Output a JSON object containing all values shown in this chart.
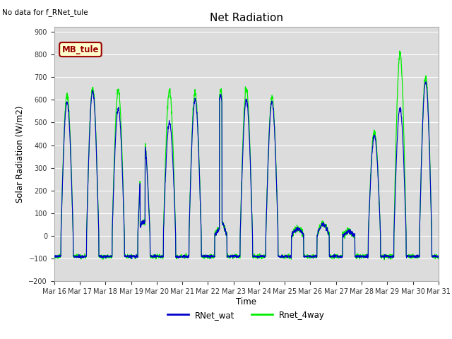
{
  "title": "Net Radiation",
  "xlabel": "Time",
  "ylabel": "Solar Radiation (W/m2)",
  "ylim": [
    -200,
    920
  ],
  "yticks": [
    -200,
    -100,
    0,
    100,
    200,
    300,
    400,
    500,
    600,
    700,
    800,
    900
  ],
  "note_text": "No data for f_RNet_tule",
  "legend_label": "MB_tule",
  "line1_label": "RNet_wat",
  "line2_label": "Rnet_4way",
  "line1_color": "#0000cc",
  "line2_color": "#00ee00",
  "bg_color": "#dcdcdc",
  "fig_bg": "#ffffff",
  "n_days": 15,
  "start_day": 16,
  "mb_box_bg": "#ffffcc",
  "mb_box_edge": "#990000",
  "mb_text_color": "#990000"
}
